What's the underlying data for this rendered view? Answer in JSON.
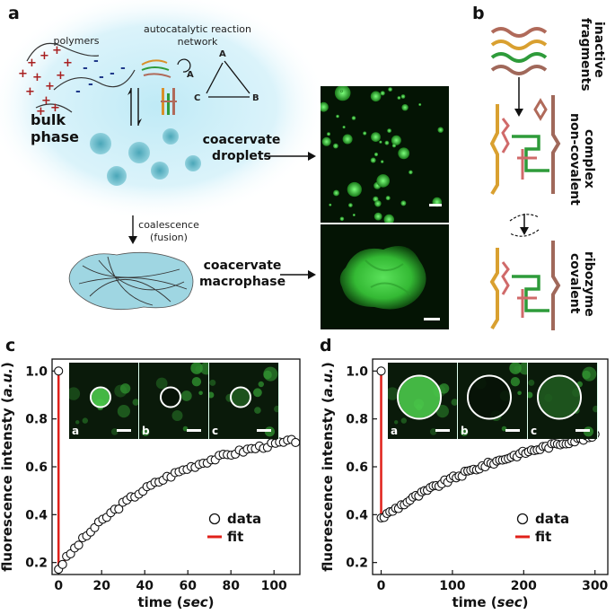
{
  "panel_labels": {
    "a": "a",
    "b": "b",
    "c": "c",
    "d": "d"
  },
  "panel_a": {
    "polymers": "polymers",
    "network_line1": "autocatalytic reaction",
    "network_line2": "network",
    "node_a_top": "A",
    "node_a": "A",
    "node_b": "B",
    "node_c": "C",
    "bulk_line1": "bulk",
    "bulk_line2": "phase",
    "droplets_line1": "coacervate",
    "droplets_line2": "droplets",
    "coalescence_line1": "coalescence",
    "coalescence_line2": "(fusion)",
    "macro_line1": "coacervate",
    "macro_line2": "macrophase",
    "plus": "+",
    "minus": "-"
  },
  "panel_b": {
    "fragments": "inactive fragments",
    "noncovalent_1": "non-covalent",
    "noncovalent_2": "complex",
    "covalent_1": "covalent",
    "covalent_2": "ribozyme"
  },
  "colors": {
    "fit": "#e0201a",
    "accent_tick": "#1a2a6e",
    "micro_green": "#3ddc3d"
  },
  "chart_data": [
    {
      "type": "scatter",
      "panel": "c",
      "xlabel_main": "time (",
      "xlabel_unit": "sec",
      "xlabel_end": ")",
      "ylabel_main": "fluorescence intensty (",
      "ylabel_unit": "a.u.",
      "ylabel_end": ")",
      "xlim": [
        -3,
        112
      ],
      "ylim": [
        0.15,
        1.05
      ],
      "xticks": [
        "0",
        "20",
        "40",
        "60",
        "80",
        "100"
      ],
      "yticks": [
        "0.2",
        "0.4",
        "0.6",
        "0.8",
        "1.0"
      ],
      "xtick_values": [
        0,
        20,
        40,
        60,
        80,
        100
      ],
      "ytick_values": [
        0.2,
        0.4,
        0.6,
        0.8,
        1.0
      ],
      "legend": [
        "data",
        "fit"
      ],
      "prebleach": {
        "x": 0,
        "y": 1.0
      },
      "model": {
        "y0": 0.175,
        "amp": 0.6,
        "tau": 50
      },
      "data_x_range": [
        0,
        110
      ],
      "n_points": 60,
      "inset_labels": [
        "a",
        "b",
        "c"
      ]
    },
    {
      "type": "scatter",
      "panel": "d",
      "xlabel_main": "time (",
      "xlabel_unit": "sec",
      "xlabel_end": ")",
      "ylabel_main": "fluorescence intensty (",
      "ylabel_unit": "a.u.",
      "ylabel_end": ")",
      "xlim": [
        -12,
        318
      ],
      "ylim": [
        0.15,
        1.05
      ],
      "xticks": [
        "0",
        "100",
        "200",
        "300"
      ],
      "yticks": [
        "0.2",
        "0.4",
        "0.6",
        "0.8",
        "1.0"
      ],
      "xtick_values": [
        0,
        100,
        200,
        300
      ],
      "ytick_values": [
        0.2,
        0.4,
        0.6,
        0.8,
        1.0
      ],
      "legend": [
        "data",
        "fit"
      ],
      "prebleach": {
        "x": 0,
        "y": 1.0
      },
      "model": {
        "y0": 0.385,
        "amp": 0.47,
        "tau": 230
      },
      "data_x_range": [
        0,
        300
      ],
      "n_points": 75,
      "inset_labels": [
        "a",
        "b",
        "c"
      ]
    }
  ]
}
